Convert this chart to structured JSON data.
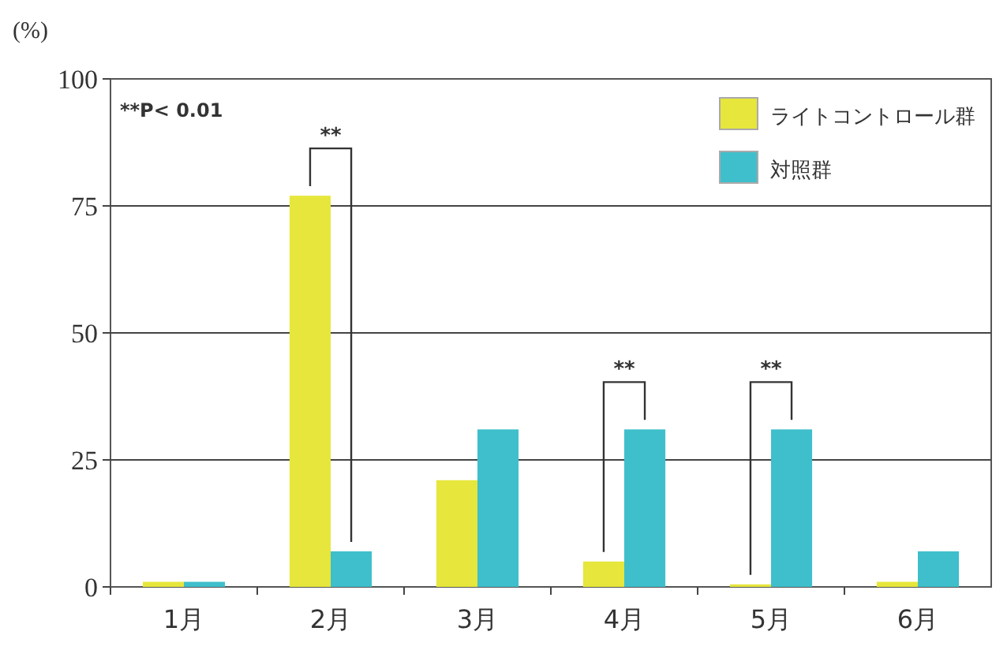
{
  "chart_data": {
    "type": "bar",
    "ylabel": "(%)",
    "categories": [
      "1月",
      "2月",
      "3月",
      "4月",
      "5月",
      "6月"
    ],
    "series": [
      {
        "name": "ライトコントロール群",
        "color": "#e6e63c",
        "values": [
          1,
          77,
          21,
          5,
          0.5,
          1
        ]
      },
      {
        "name": "対照群",
        "color": "#3fbfcb",
        "values": [
          1,
          7,
          31,
          31,
          31,
          7
        ]
      }
    ],
    "ylim": [
      0,
      100
    ],
    "yticks": [
      0,
      25,
      50,
      75,
      100
    ],
    "grid": "y",
    "legend": "top right",
    "annotations": [
      "**P< 0.01",
      {
        "text": "**",
        "x": "2月",
        "y": 77
      },
      {
        "text": "**",
        "x": "4月",
        "y": 31
      },
      {
        "text": "**",
        "x": "5月",
        "y": 31
      }
    ]
  }
}
